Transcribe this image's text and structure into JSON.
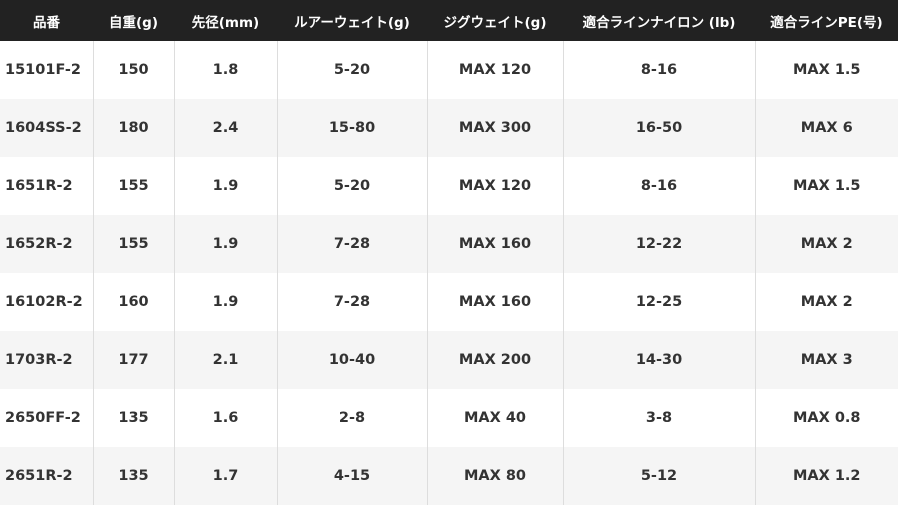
{
  "table": {
    "headers": [
      "品番",
      "自重(g)",
      "先径(mm)",
      "ルアーウェイト(g)",
      "ジグウェイト(g)",
      "適合ラインナイロン (lb)",
      "適合ラインPE(号)"
    ],
    "rows": [
      [
        "15101F-2",
        "150",
        "1.8",
        "5-20",
        "MAX 120",
        "8-16",
        "MAX 1.5"
      ],
      [
        "1604SS-2",
        "180",
        "2.4",
        "15-80",
        "MAX 300",
        "16-50",
        "MAX 6"
      ],
      [
        "1651R-2",
        "155",
        "1.9",
        "5-20",
        "MAX 120",
        "8-16",
        "MAX 1.5"
      ],
      [
        "1652R-2",
        "155",
        "1.9",
        "7-28",
        "MAX 160",
        "12-22",
        "MAX 2"
      ],
      [
        "16102R-2",
        "160",
        "1.9",
        "7-28",
        "MAX 160",
        "12-25",
        "MAX 2"
      ],
      [
        "1703R-2",
        "177",
        "2.1",
        "10-40",
        "MAX 200",
        "14-30",
        "MAX 3"
      ],
      [
        "2650FF-2",
        "135",
        "1.6",
        "2-8",
        "MAX 40",
        "3-8",
        "MAX 0.8"
      ],
      [
        "2651R-2",
        "135",
        "1.7",
        "4-15",
        "MAX 80",
        "5-12",
        "MAX 1.2"
      ]
    ]
  }
}
